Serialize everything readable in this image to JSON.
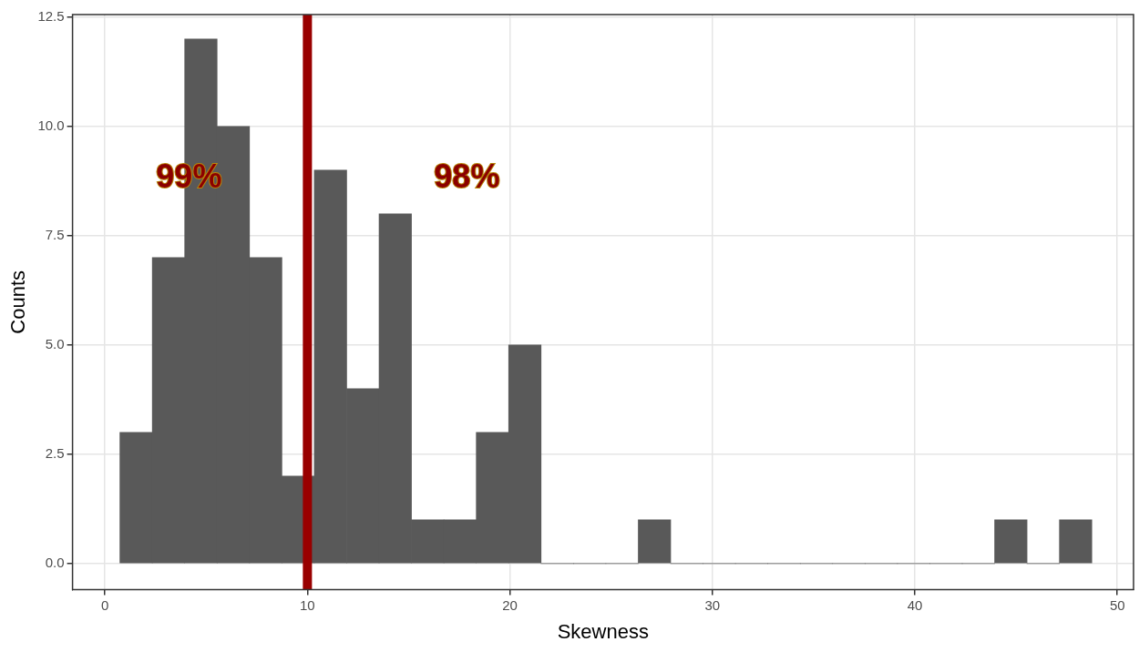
{
  "chart_data": {
    "type": "histogram",
    "xlabel": "Skewness",
    "ylabel": "Counts",
    "bins": [
      0.74,
      2.34,
      3.94,
      5.54,
      7.14,
      8.74,
      10.34,
      11.94,
      13.54,
      15.14,
      16.74,
      18.34,
      19.94,
      21.54,
      23.14,
      24.74,
      26.34,
      27.94,
      29.54,
      31.14,
      32.74,
      34.34,
      35.94,
      37.54,
      39.14,
      40.74,
      42.34,
      43.94,
      45.54,
      47.14,
      48.74
    ],
    "values": [
      3,
      7,
      12,
      10,
      7,
      2,
      9,
      4,
      8,
      1,
      1,
      3,
      5,
      0,
      0,
      0,
      1,
      0,
      0,
      0,
      0,
      0,
      0,
      0,
      0,
      0,
      0,
      1,
      0,
      1
    ],
    "color": "#595959",
    "xlim": [
      -1.6,
      50.8
    ],
    "xticks": [
      0,
      10,
      20,
      30,
      40,
      50
    ],
    "ylim": [
      -0.6,
      12.56
    ],
    "yticks": [
      {
        "value": 0,
        "label": "0.0"
      },
      {
        "value": 2.5,
        "label": "2.5"
      },
      {
        "value": 5,
        "label": "5.0"
      },
      {
        "value": 7.5,
        "label": "7.5"
      },
      {
        "value": 10,
        "label": "10.0"
      },
      {
        "value": 12.5,
        "label": "12.5"
      }
    ],
    "grid": true,
    "legend": false,
    "ref_lines": [
      {
        "axis": "x",
        "value": 10,
        "color": "#990000"
      }
    ],
    "annotations": [
      "99%",
      "98%"
    ]
  }
}
